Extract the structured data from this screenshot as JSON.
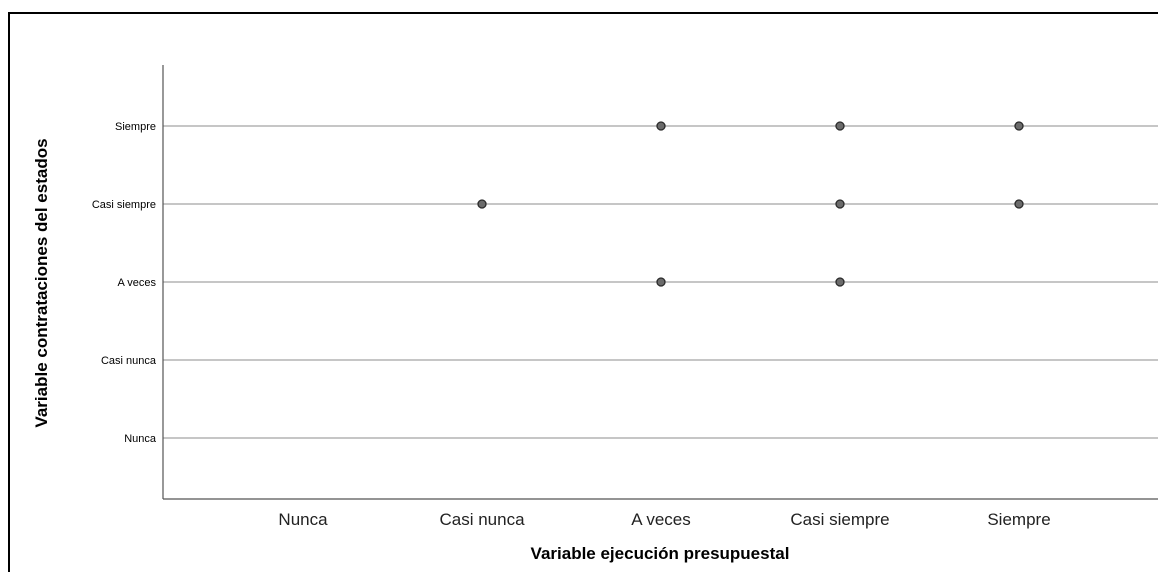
{
  "chart_data": {
    "type": "scatter",
    "title": "",
    "xlabel": "Variable ejecución presupuestal",
    "ylabel": "Variable contrataciones del estados",
    "x_categories": [
      "Nunca",
      "Casi nunca",
      "A veces",
      "Casi siempre",
      "Siempre"
    ],
    "y_categories": [
      "Nunca",
      "Casi nunca",
      "A veces",
      "Casi siempre",
      "Siempre"
    ],
    "grid": "horizontal",
    "legend": "none",
    "points": [
      {
        "x": "A veces",
        "y": "Siempre"
      },
      {
        "x": "Casi siempre",
        "y": "Siempre"
      },
      {
        "x": "Siempre",
        "y": "Siempre"
      },
      {
        "x": "Casi nunca",
        "y": "Casi siempre"
      },
      {
        "x": "Casi siempre",
        "y": "Casi siempre"
      },
      {
        "x": "Siempre",
        "y": "Casi siempre"
      },
      {
        "x": "A veces",
        "y": "A veces"
      },
      {
        "x": "Casi siempre",
        "y": "A veces"
      }
    ],
    "colors": {
      "point_fill": "#6b6b6b",
      "point_stroke": "#2a2a2a",
      "grid": "#b3b3b3"
    }
  }
}
